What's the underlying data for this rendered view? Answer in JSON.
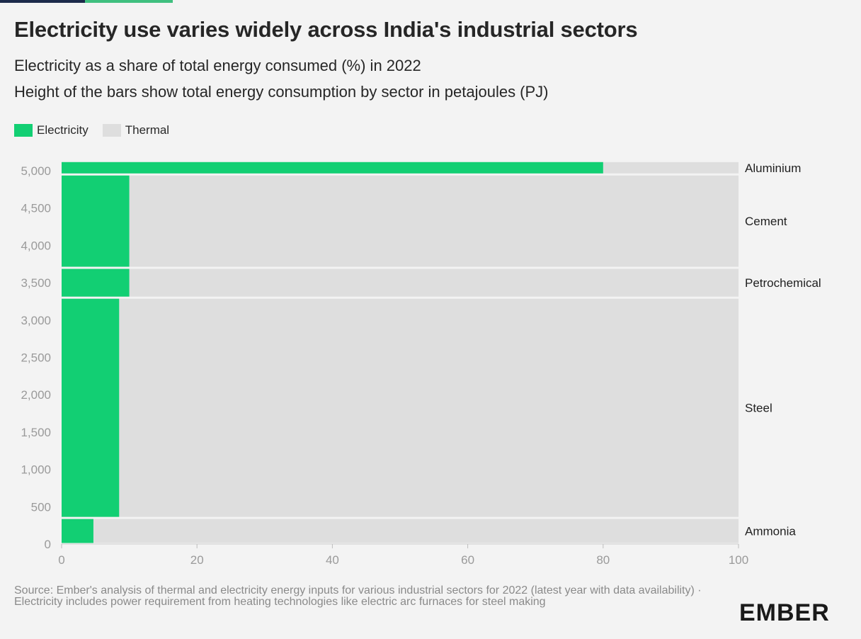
{
  "header": {
    "title": "Electricity use varies widely across India's industrial sectors",
    "subtitle_1": "Electricity as a share of total energy consumed (%) in 2022",
    "subtitle_2": "Height of the bars show total energy consumption by sector in petajoules (PJ)"
  },
  "legend": {
    "electricity": "Electricity",
    "thermal": "Thermal"
  },
  "colors": {
    "electricity": "#12cf73",
    "thermal": "#dedede",
    "grid": "#ffffff",
    "axis_text": "#9a9a9a",
    "accent": "#3fbf7f"
  },
  "chart_data": {
    "type": "bar",
    "subtype": "marimekko-horizontal",
    "title": "Electricity use varies widely across India's industrial sectors",
    "xlabel": "Electricity as a share of total energy consumed (%)",
    "ylabel": "Total energy consumption (PJ)",
    "xlim": [
      0,
      100
    ],
    "ylim": [
      0,
      5000
    ],
    "x_ticks": [
      0,
      20,
      40,
      60,
      80,
      100
    ],
    "y_ticks": [
      0,
      500,
      1000,
      1500,
      2000,
      2500,
      3000,
      3500,
      4000,
      4500,
      5000
    ],
    "y_tick_labels": [
      "0",
      "500",
      "1,000",
      "1,500",
      "2,000",
      "2,500",
      "3,000",
      "3,500",
      "4,000",
      "4,500",
      "5,000"
    ],
    "series": [
      {
        "name": "Electricity",
        "values": [
          4.7,
          8.5,
          10,
          10,
          80
        ]
      },
      {
        "name": "Thermal",
        "values": [
          95.3,
          91.5,
          90,
          90,
          20
        ]
      }
    ],
    "categories": [
      "Ammonia",
      "Steel",
      "Petrochemical",
      "Cement",
      "Aluminium"
    ],
    "sectors": [
      {
        "name": "Ammonia",
        "start": 0,
        "end": 350,
        "electricity_share": 4.7
      },
      {
        "name": "Steel",
        "start": 350,
        "end": 3300,
        "electricity_share": 8.5
      },
      {
        "name": "Petrochemical",
        "start": 3300,
        "end": 3700,
        "electricity_share": 10
      },
      {
        "name": "Cement",
        "start": 3700,
        "end": 4950,
        "electricity_share": 10
      },
      {
        "name": "Aluminium",
        "start": 4950,
        "end": 5130,
        "electricity_share": 80
      }
    ]
  },
  "footer": {
    "source_1": "Source: Ember's analysis of thermal and electricity energy inputs for various industrial sectors for 2022 (latest year with data availability) ·",
    "source_2": "Electricity includes power requirement from heating technologies like electric arc furnaces for steel making",
    "logo": "EMBER"
  }
}
